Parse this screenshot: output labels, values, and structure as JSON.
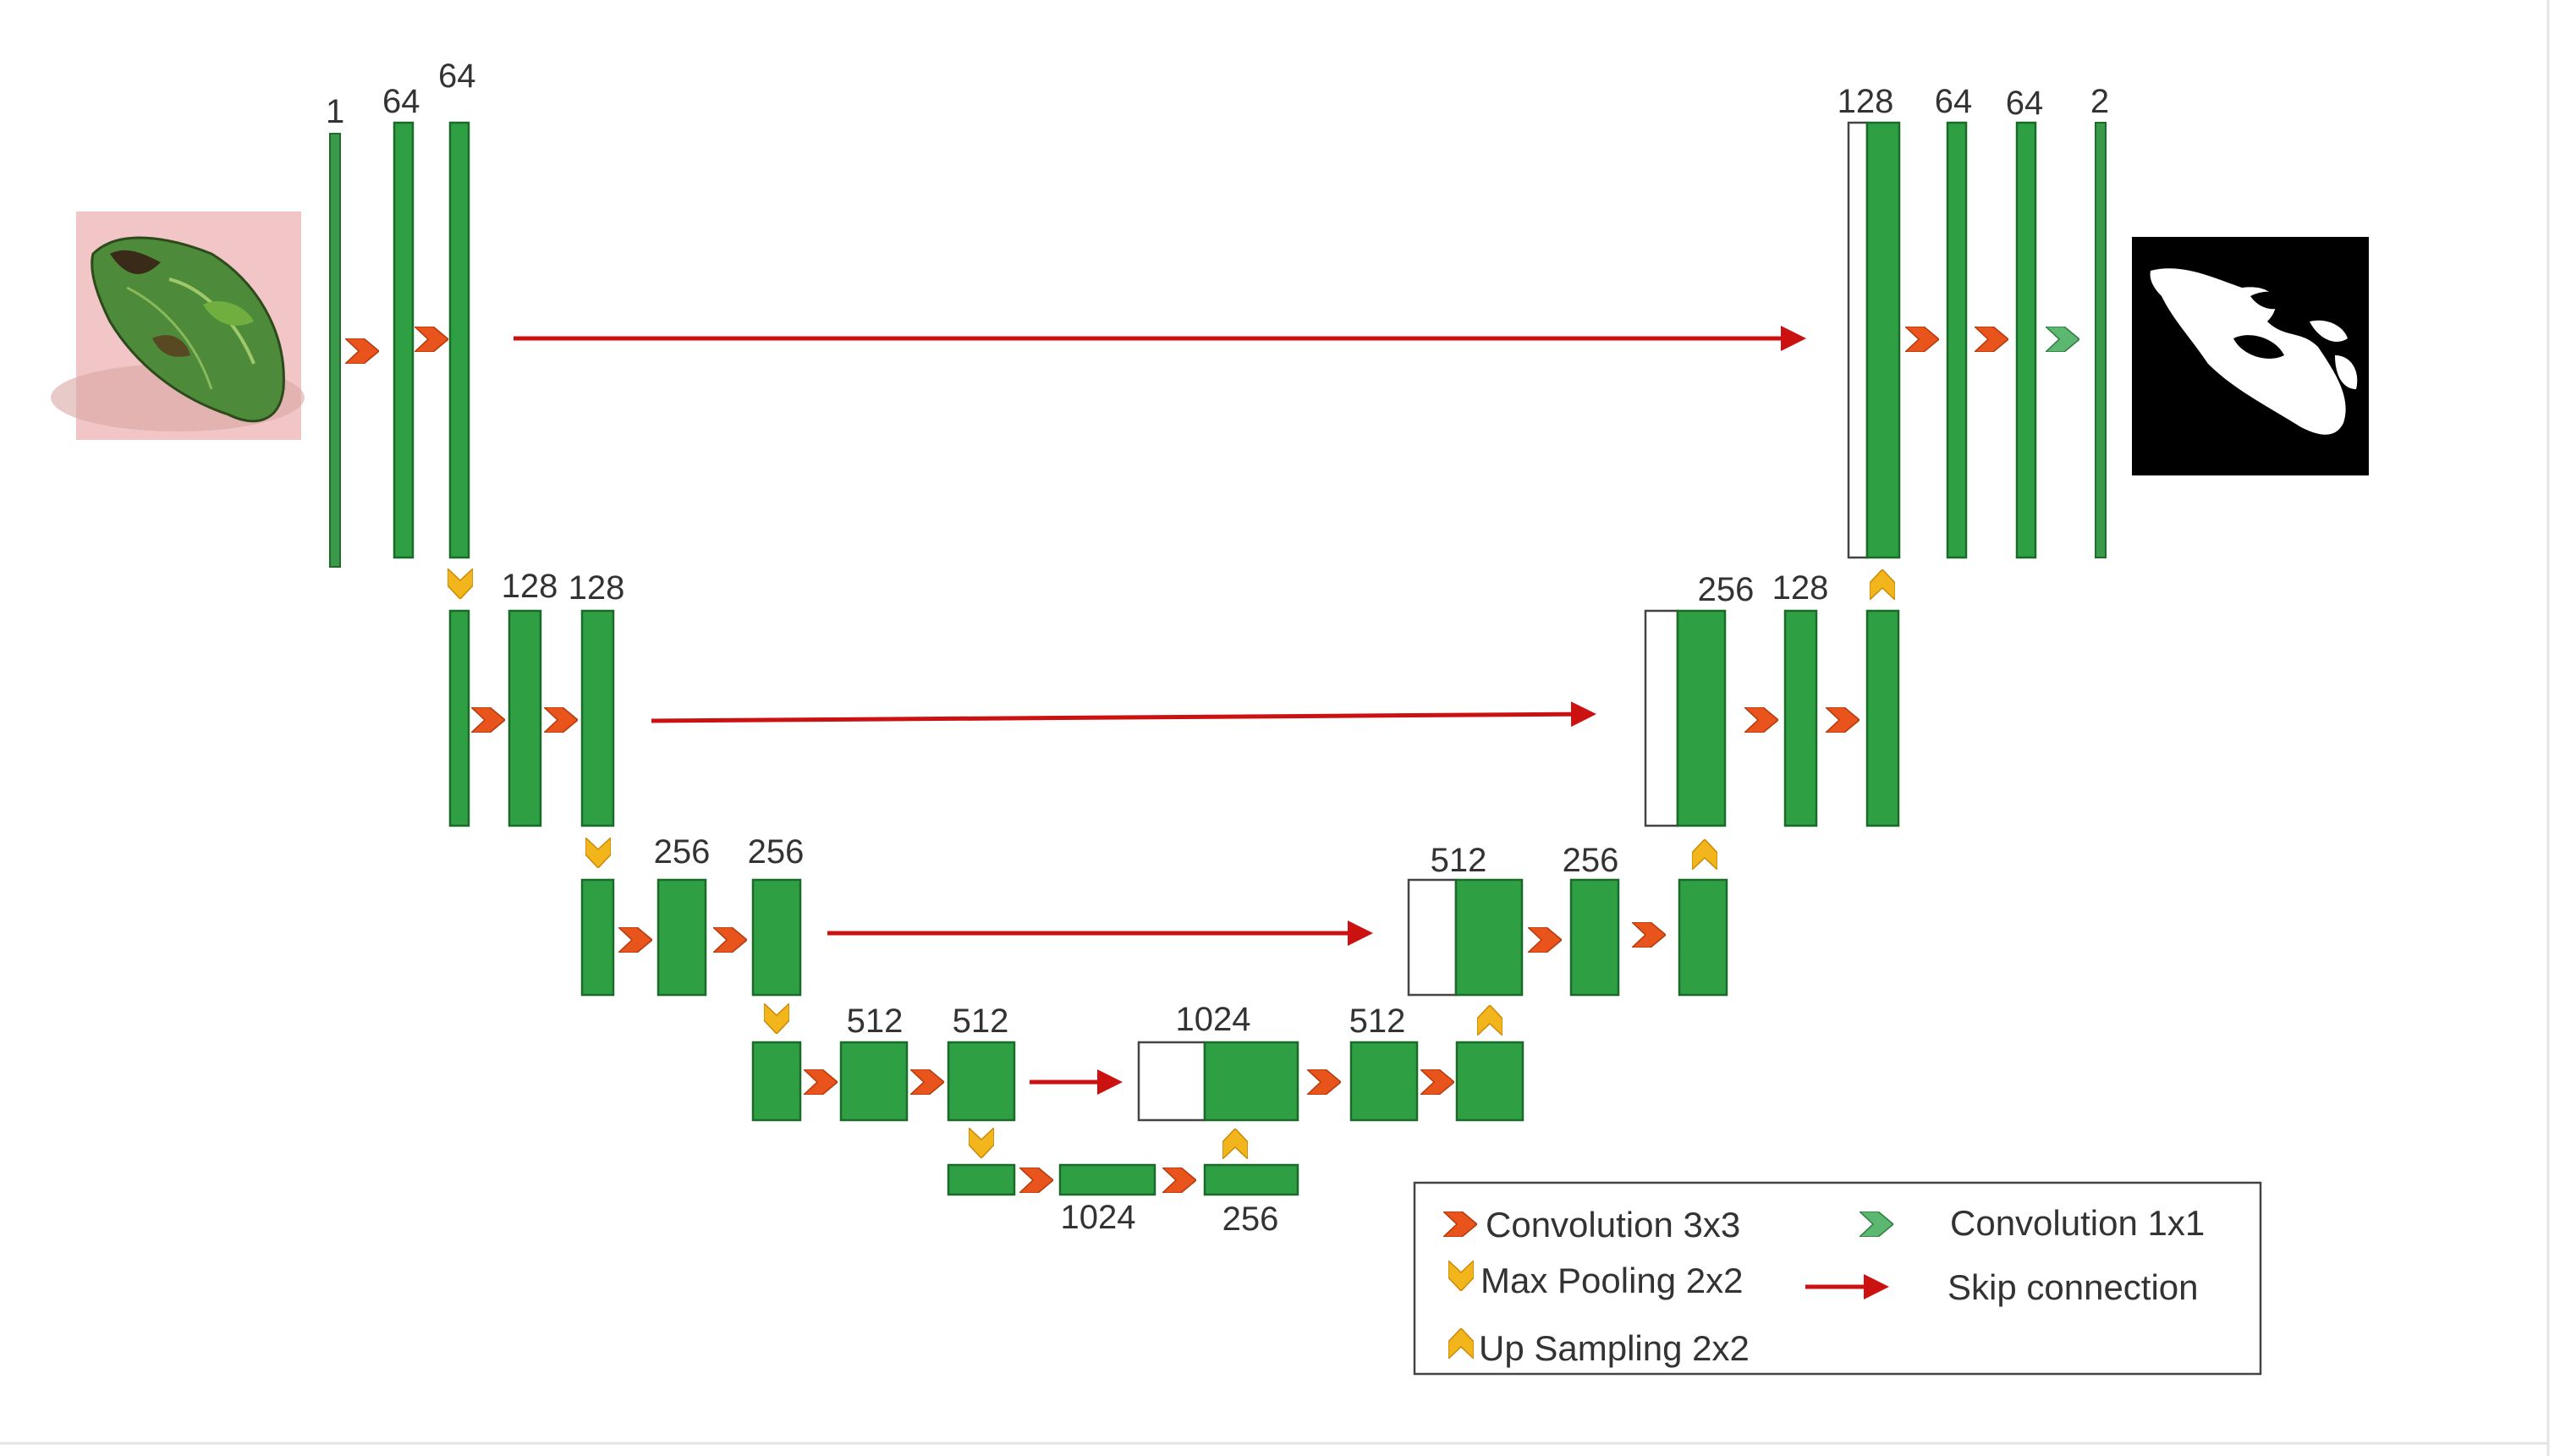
{
  "diagram": {
    "level1": {
      "encoder_labels": [
        "1",
        "64",
        "64"
      ],
      "decoder_labels": [
        "128",
        "64",
        "64",
        "2"
      ]
    },
    "level2": {
      "encoder_labels": [
        "128",
        "128"
      ],
      "decoder_labels": [
        "256",
        "128"
      ]
    },
    "level3": {
      "encoder_labels": [
        "256",
        "256"
      ],
      "decoder_labels": [
        "512",
        "256"
      ]
    },
    "level4": {
      "encoder_labels": [
        "512",
        "512"
      ],
      "decoder_labels": [
        "1024",
        "512"
      ]
    },
    "bottleneck": {
      "labels": [
        "1024",
        "256"
      ]
    }
  },
  "legend": {
    "conv3x3": "Convolution 3x3",
    "conv1x1": "Convolution 1x1",
    "maxpool": "Max Pooling 2x2",
    "skip": "Skip connection",
    "upsample": "Up Sampling 2x2"
  },
  "colors": {
    "block": "#2ea043",
    "conv3x3": "#e8541c",
    "conv1x1": "#5cb870",
    "pool": "#f3b51c",
    "skip": "#cc1111"
  },
  "images": {
    "input": "leaf-photo",
    "output": "segmentation-mask"
  }
}
